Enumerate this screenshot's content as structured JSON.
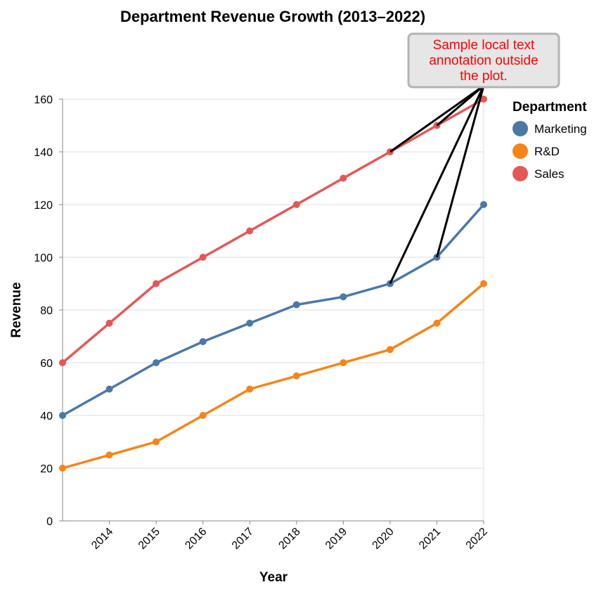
{
  "chart_data": {
    "type": "line",
    "title": "Department Revenue Growth (2013–2022)",
    "xlabel": "Year",
    "ylabel": "Revenue",
    "x": [
      2013,
      2014,
      2015,
      2016,
      2017,
      2018,
      2019,
      2020,
      2021,
      2022
    ],
    "x_tick_labels": [
      "2014",
      "2015",
      "2016",
      "2017",
      "2018",
      "2019",
      "2020",
      "2021",
      "2022"
    ],
    "ylim": [
      0,
      160
    ],
    "y_ticks": [
      0,
      20,
      40,
      60,
      80,
      100,
      120,
      140,
      160
    ],
    "legend_title": "Department",
    "legend_position": "right",
    "series": [
      {
        "name": "Marketing",
        "color": "#4c78a8",
        "values": [
          40,
          50,
          60,
          68,
          75,
          82,
          85,
          90,
          100,
          120
        ]
      },
      {
        "name": "R&D",
        "color": "#f58518",
        "values": [
          20,
          25,
          30,
          40,
          50,
          55,
          60,
          65,
          75,
          90
        ]
      },
      {
        "name": "Sales",
        "color": "#e45756",
        "values": [
          60,
          75,
          90,
          100,
          110,
          120,
          130,
          140,
          150,
          160
        ]
      }
    ],
    "annotation": {
      "text_lines": [
        "Sample local text",
        "annotation outside",
        "the plot."
      ],
      "text_color": "#ff0000",
      "box_fill": "#e6e6e6",
      "box_stroke": "#b3b3b3",
      "targets": [
        {
          "series": "Sales",
          "x": 2020
        },
        {
          "series": "Sales",
          "x": 2021
        },
        {
          "series": "Marketing",
          "x": 2020
        },
        {
          "series": "Marketing",
          "x": 2021
        }
      ]
    }
  }
}
